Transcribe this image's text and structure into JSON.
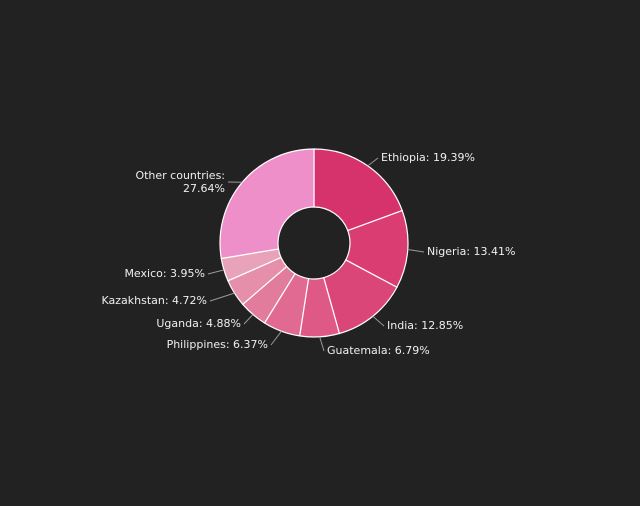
{
  "chart_data": {
    "type": "donut",
    "values": [
      19.39,
      13.41,
      12.85,
      6.79,
      6.37,
      4.88,
      4.72,
      3.95,
      27.64
    ],
    "value_labels": [
      "Ethiopia: 19.39%",
      "Nigeria: 13.41%",
      "India: 12.85%",
      "Guatemala: 6.79%",
      "Philippines: 6.37%",
      "Uganda: 4.88%",
      "Kazakhstan: 4.72%",
      "Mexico: 3.95%",
      "Other countries: 27.64%"
    ],
    "colors": [
      "#d6336c",
      "#d93d72",
      "#db4679",
      "#de5985",
      "#e06a91",
      "#e27c9d",
      "#e58fab",
      "#e8a3ba",
      "#ee8fca"
    ]
  }
}
